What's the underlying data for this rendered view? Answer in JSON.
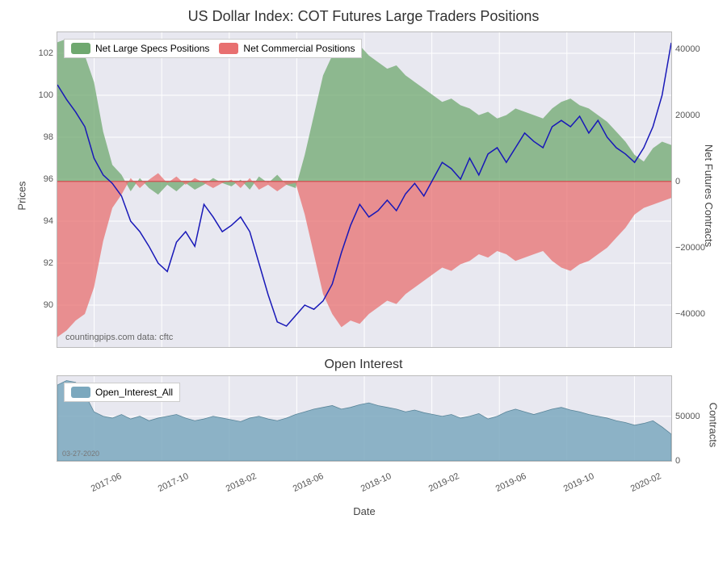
{
  "main_chart": {
    "title": "US Dollar Index: COT Futures Large Traders Positions",
    "type": "area_line_dual_axis",
    "background_color": "#e8e8f0",
    "grid_color": "#ffffff",
    "title_fontsize": 18,
    "label_fontsize": 13,
    "tick_fontsize": 11,
    "left_axis": {
      "label": "Prices",
      "min": 88,
      "max": 103,
      "ticks": [
        90,
        92,
        94,
        96,
        98,
        100,
        102
      ]
    },
    "right_axis": {
      "label": "Net Futures Contracts",
      "min": -50000,
      "max": 45000,
      "ticks": [
        -40000,
        -20000,
        0,
        20000,
        40000
      ],
      "tick_labels": [
        "−40000",
        "−20000",
        "0",
        "20000",
        "40000"
      ]
    },
    "x_axis": {
      "ticks": [
        "2017-06",
        "2017-10",
        "2018-02",
        "2018-06",
        "2018-10",
        "2019-02",
        "2019-06",
        "2019-10",
        "2020-02"
      ],
      "tick_positions": [
        0.06,
        0.17,
        0.28,
        0.39,
        0.5,
        0.61,
        0.72,
        0.83,
        0.94
      ]
    },
    "legend": [
      {
        "label": "Net Large Specs Positions",
        "color": "#6fa86f"
      },
      {
        "label": "Net Commercial Positions",
        "color": "#e87070"
      }
    ],
    "attribution": "countingpips.com    data: cftc",
    "series_specs": {
      "name": "Net Large Specs Positions",
      "color": "#6fa86f",
      "fill_opacity": 0.75,
      "baseline": 0,
      "data": [
        42000,
        43000,
        40000,
        38000,
        30000,
        15000,
        5000,
        2000,
        -3000,
        1000,
        -2000,
        -4000,
        -1000,
        -3000,
        -500,
        -2500,
        -1000,
        1000,
        -500,
        -1500,
        500,
        -2500,
        1500,
        -500,
        2000,
        -1000,
        -2000,
        8000,
        20000,
        32000,
        38000,
        42000,
        40000,
        41000,
        38000,
        36000,
        34000,
        35000,
        32000,
        30000,
        28000,
        26000,
        24000,
        25000,
        23000,
        22000,
        20000,
        21000,
        19000,
        20000,
        22000,
        21000,
        20000,
        19000,
        22000,
        24000,
        25000,
        23000,
        22000,
        20000,
        18000,
        15000,
        12000,
        8000,
        6000,
        10000,
        12000,
        11000
      ]
    },
    "series_comm": {
      "name": "Net Commercial Positions",
      "color": "#e87070",
      "fill_opacity": 0.75,
      "baseline": 0,
      "data": [
        -47000,
        -45000,
        -42000,
        -40000,
        -32000,
        -18000,
        -8000,
        -4000,
        1000,
        -2000,
        500,
        2500,
        -500,
        1500,
        -1000,
        1000,
        -500,
        -2000,
        -500,
        500,
        -2000,
        1000,
        -2500,
        -1000,
        -3000,
        -1000,
        -500,
        -10000,
        -22000,
        -34000,
        -40000,
        -44000,
        -42000,
        -43000,
        -40000,
        -38000,
        -36000,
        -37000,
        -34000,
        -32000,
        -30000,
        -28000,
        -26000,
        -27000,
        -25000,
        -24000,
        -22000,
        -23000,
        -21000,
        -22000,
        -24000,
        -23000,
        -22000,
        -21000,
        -24000,
        -26000,
        -27000,
        -25000,
        -24000,
        -22000,
        -20000,
        -17000,
        -14000,
        -10000,
        -8000,
        -7000,
        -6000,
        -5000
      ]
    },
    "series_price": {
      "name": "Prices",
      "color": "#1818b8",
      "line_width": 1.5,
      "data": [
        100.5,
        99.8,
        99.2,
        98.5,
        97.0,
        96.2,
        95.8,
        95.2,
        94.0,
        93.5,
        92.8,
        92.0,
        91.6,
        93.0,
        93.5,
        92.8,
        94.8,
        94.2,
        93.5,
        93.8,
        94.2,
        93.5,
        92.0,
        90.5,
        89.2,
        89.0,
        89.5,
        90.0,
        89.8,
        90.2,
        91.0,
        92.5,
        93.8,
        94.8,
        94.2,
        94.5,
        95.0,
        94.5,
        95.3,
        95.8,
        95.2,
        96.0,
        96.8,
        96.5,
        96.0,
        97.0,
        96.2,
        97.2,
        97.5,
        96.8,
        97.5,
        98.2,
        97.8,
        97.5,
        98.5,
        98.8,
        98.5,
        99.0,
        98.2,
        98.8,
        98.0,
        97.5,
        97.2,
        96.8,
        97.5,
        98.5,
        100.0,
        102.5
      ]
    }
  },
  "sub_chart": {
    "title": "Open Interest",
    "type": "area",
    "background_color": "#e8e8f0",
    "grid_color": "#ffffff",
    "left_axis": {
      "ticks": []
    },
    "right_axis": {
      "label": "Contracts",
      "min": 0,
      "max": 95000,
      "ticks": [
        0,
        50000
      ],
      "tick_labels": [
        "0",
        "50000"
      ]
    },
    "x_axis": {
      "label": "Date",
      "ticks": [
        "2017-06",
        "2017-10",
        "2018-02",
        "2018-06",
        "2018-10",
        "2019-02",
        "2019-06",
        "2019-10",
        "2020-02"
      ],
      "tick_positions": [
        0.06,
        0.17,
        0.28,
        0.39,
        0.5,
        0.61,
        0.72,
        0.83,
        0.94
      ]
    },
    "legend": [
      {
        "label": "Open_Interest_All",
        "color": "#7ba8be"
      }
    ],
    "date_stamp": "03-27-2020",
    "series_oi": {
      "name": "Open_Interest_All",
      "color": "#7ba8be",
      "fill_opacity": 0.85,
      "data": [
        85000,
        90000,
        88000,
        75000,
        55000,
        50000,
        48000,
        52000,
        47000,
        50000,
        45000,
        48000,
        50000,
        52000,
        48000,
        45000,
        47000,
        50000,
        48000,
        46000,
        44000,
        48000,
        50000,
        47000,
        45000,
        48000,
        52000,
        55000,
        58000,
        60000,
        62000,
        58000,
        60000,
        63000,
        65000,
        62000,
        60000,
        58000,
        55000,
        57000,
        54000,
        52000,
        50000,
        52000,
        48000,
        50000,
        53000,
        47000,
        50000,
        55000,
        58000,
        55000,
        52000,
        55000,
        58000,
        60000,
        57000,
        55000,
        52000,
        50000,
        48000,
        45000,
        43000,
        40000,
        42000,
        45000,
        38000,
        30000
      ]
    }
  }
}
